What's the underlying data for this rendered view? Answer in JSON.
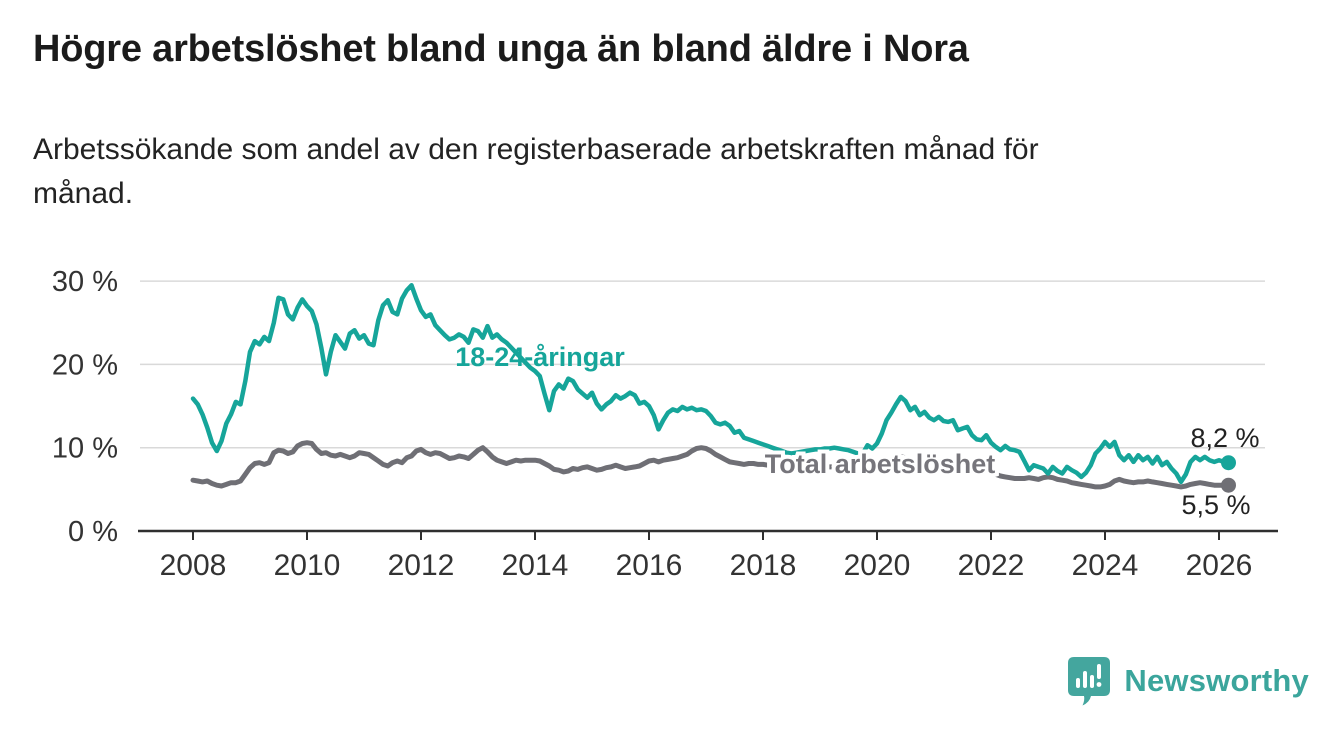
{
  "title": "Högre arbetslöshet bland unga än bland äldre i Nora",
  "subtitle_lines": [
    "Arbetssökande som andel av den registerbaserade arbetskraften månad för",
    "månad."
  ],
  "branding": {
    "logo_text": "Newsworthy",
    "logo_color": "#44A69E"
  },
  "colors": {
    "young_line": "#16A59A",
    "total_line": "#6F6F75",
    "total_label": "#76757B",
    "grid": "#D9D9D9",
    "axis": "#2F2F2F",
    "text": "#1B1B1B"
  },
  "chart_data": {
    "type": "line",
    "title": "Högre arbetslöshet bland unga än bland äldre i Nora",
    "subtitle": "Arbetssökande som andel av den registerbaserade arbetskraften månad för månad.",
    "unit": "%",
    "grid": "horizontal",
    "legend": "inline-labels",
    "x_axis": {
      "start_year": 2008,
      "step_months": 1,
      "end": "2026-03",
      "tick_labels": [
        "2008",
        "2010",
        "2012",
        "2014",
        "2016",
        "2018",
        "2020",
        "2022",
        "2024",
        "2026"
      ]
    },
    "y_axis": {
      "unit": "%",
      "range": [
        0,
        32
      ],
      "ticks": [
        {
          "label": "30 %",
          "value": 30
        },
        {
          "label": "20 %",
          "value": 20
        },
        {
          "label": "10 %",
          "value": 10
        },
        {
          "label": "0 %",
          "value": 0
        }
      ]
    },
    "series": [
      {
        "name": "18-24-åringar",
        "color": "#16A59A",
        "end_label": "8,2 %",
        "end_value": 8.2,
        "values": [
          15.9,
          15.2,
          14.0,
          12.4,
          10.6,
          9.6,
          10.8,
          12.9,
          14.0,
          15.5,
          15.2,
          18.0,
          21.5,
          22.8,
          22.4,
          23.3,
          22.8,
          25.0,
          28.0,
          27.8,
          26.0,
          25.4,
          26.8,
          27.8,
          27.0,
          26.4,
          24.8,
          22.0,
          18.8,
          21.5,
          23.5,
          22.7,
          21.9,
          23.7,
          24.1,
          23.1,
          23.5,
          22.5,
          22.3,
          25.3,
          27.1,
          27.7,
          26.3,
          26.0,
          27.9,
          28.9,
          29.5,
          27.9,
          26.5,
          25.7,
          26.0,
          24.7,
          24.1,
          23.5,
          23.0,
          23.2,
          23.6,
          23.3,
          22.6,
          24.2,
          24.0,
          23.2,
          24.6,
          23.2,
          23.6,
          23.0,
          22.6,
          22.0,
          21.4,
          20.8,
          20.2,
          19.6,
          19.2,
          18.6,
          16.5,
          14.5,
          16.8,
          17.6,
          17.1,
          18.3,
          18.0,
          17.0,
          16.5,
          16.0,
          16.6,
          15.3,
          14.6,
          15.2,
          15.6,
          16.3,
          15.9,
          16.2,
          16.6,
          16.3,
          15.3,
          15.5,
          15.0,
          13.9,
          12.2,
          13.3,
          14.2,
          14.6,
          14.4,
          14.9,
          14.6,
          14.8,
          14.5,
          14.6,
          14.4,
          13.8,
          13.0,
          12.8,
          13.0,
          12.6,
          11.8,
          12.0,
          11.2,
          11.0,
          10.8,
          10.6,
          10.4,
          10.2,
          10.0,
          9.8,
          9.6,
          9.4,
          9.3,
          9.4,
          9.5,
          9.6,
          9.7,
          9.8,
          9.8,
          9.9,
          9.9,
          10.0,
          9.9,
          9.8,
          9.7,
          9.5,
          9.3,
          9.3,
          10.3,
          9.9,
          10.5,
          11.7,
          13.3,
          14.2,
          15.2,
          16.1,
          15.6,
          14.5,
          14.9,
          13.9,
          14.3,
          13.6,
          13.3,
          13.7,
          13.2,
          13.1,
          13.3,
          12.1,
          12.3,
          12.5,
          11.5,
          11.0,
          10.9,
          11.5,
          10.6,
          10.1,
          9.7,
          10.2,
          9.8,
          9.7,
          9.5,
          8.4,
          7.3,
          7.9,
          7.7,
          7.5,
          6.9,
          7.7,
          7.2,
          6.9,
          7.7,
          7.3,
          7.0,
          6.5,
          7.0,
          7.9,
          9.3,
          9.9,
          10.7,
          10.1,
          10.7,
          9.1,
          8.5,
          9.1,
          8.3,
          9.1,
          8.5,
          8.9,
          8.1,
          8.9,
          7.9,
          8.3,
          7.5,
          6.9,
          5.9,
          6.8,
          8.3,
          8.9,
          8.5,
          8.9,
          8.5,
          8.3,
          8.5,
          8.3,
          8.2
        ]
      },
      {
        "name": "Total arbetslöshet",
        "color": "#6F6F75",
        "end_label": "5,5 %",
        "end_value": 5.5,
        "values": [
          6.1,
          6.0,
          5.9,
          6.0,
          5.7,
          5.5,
          5.4,
          5.6,
          5.8,
          5.8,
          6.0,
          6.8,
          7.6,
          8.1,
          8.2,
          8.0,
          8.2,
          9.4,
          9.7,
          9.6,
          9.3,
          9.5,
          10.2,
          10.5,
          10.6,
          10.5,
          9.8,
          9.3,
          9.4,
          9.1,
          9.0,
          9.2,
          9.0,
          8.8,
          9.0,
          9.4,
          9.3,
          9.2,
          8.8,
          8.4,
          8.0,
          7.8,
          8.2,
          8.4,
          8.2,
          8.8,
          9.0,
          9.6,
          9.8,
          9.4,
          9.2,
          9.4,
          9.3,
          9.0,
          8.7,
          8.8,
          9.0,
          8.9,
          8.7,
          9.2,
          9.7,
          10.0,
          9.5,
          8.9,
          8.5,
          8.3,
          8.1,
          8.3,
          8.5,
          8.4,
          8.5,
          8.5,
          8.5,
          8.4,
          8.1,
          7.8,
          7.4,
          7.3,
          7.1,
          7.2,
          7.5,
          7.4,
          7.6,
          7.7,
          7.5,
          7.3,
          7.4,
          7.6,
          7.7,
          7.9,
          7.7,
          7.5,
          7.6,
          7.7,
          7.8,
          8.1,
          8.4,
          8.5,
          8.3,
          8.5,
          8.6,
          8.7,
          8.8,
          9.0,
          9.2,
          9.6,
          9.9,
          10.0,
          9.9,
          9.6,
          9.2,
          8.9,
          8.6,
          8.3,
          8.2,
          8.1,
          8.0,
          8.1,
          8.1,
          8.0,
          8.0,
          7.9,
          7.9,
          7.8,
          7.8,
          7.8,
          7.9,
          7.9,
          7.8,
          7.8,
          7.8,
          7.8,
          7.8,
          7.7,
          7.7,
          7.7,
          7.8,
          7.8,
          7.7,
          7.7,
          7.6,
          7.6,
          7.7,
          7.8,
          8.0,
          8.3,
          8.5,
          8.7,
          8.8,
          8.9,
          8.8,
          8.7,
          8.6,
          8.5,
          8.4,
          8.3,
          8.2,
          8.1,
          8.0,
          7.9,
          7.8,
          7.7,
          7.6,
          7.5,
          7.4,
          7.3,
          7.2,
          7.1,
          7.0,
          6.8,
          6.6,
          6.5,
          6.4,
          6.3,
          6.3,
          6.3,
          6.4,
          6.3,
          6.2,
          6.4,
          6.5,
          6.4,
          6.2,
          6.1,
          6.0,
          5.8,
          5.7,
          5.6,
          5.5,
          5.4,
          5.3,
          5.3,
          5.4,
          5.6,
          6.0,
          6.2,
          6.0,
          5.9,
          5.8,
          5.9,
          5.9,
          6.0,
          5.9,
          5.8,
          5.7,
          5.6,
          5.5,
          5.4,
          5.3,
          5.4,
          5.6,
          5.7,
          5.8,
          5.7,
          5.6,
          5.5,
          5.5,
          5.5,
          5.5
        ]
      }
    ]
  }
}
